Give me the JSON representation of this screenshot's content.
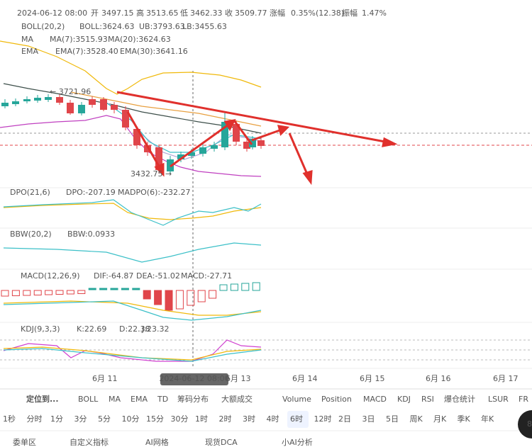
{
  "header": {
    "datetime": "2024-06-12 08:00",
    "open_label": "开",
    "open": "3497.15",
    "high_label": "高",
    "high": "3513.65",
    "low_label": "低",
    "low": "3462.33",
    "close_label": "收",
    "close": "3509.77",
    "change_label": "涨幅",
    "change": "0.35%(12.38)",
    "amplitude_label": "振幅",
    "amplitude": "1.47%"
  },
  "indicators": {
    "boll": {
      "name": "BOLL(20,2)",
      "boll": "BOLL:3624.63",
      "ub": "UB:3793.63",
      "lb": "LB:3455.63"
    },
    "ma": {
      "name": "MA",
      "ma7": "MA(7):3515.93",
      "ma20": "MA(20):3624.63"
    },
    "ema": {
      "name": "EMA",
      "ema7": "EMA(7):3528.40",
      "ema30": "EMA(30):3641.16"
    },
    "dpo": {
      "name": "DPO(21,6)",
      "dpo": "DPO:-207.19",
      "madpo": "MADPO(6):-232.27"
    },
    "bbw": {
      "name": "BBW(20,2)",
      "bbw": "BBW:0.0933"
    },
    "macd": {
      "name": "MACD(12,26,9)",
      "dif": "DIF:-64.87",
      "dea": "DEA:-51.02",
      "macd": "MACD:-27.71"
    },
    "kdj": {
      "name": "KDJ(9,3,3)",
      "k": "K:22.69",
      "d": "D:22.38",
      "j": "J:23.32"
    }
  },
  "price_marks": {
    "high": "← 3721.96",
    "low": "3432.75 →"
  },
  "dates": [
    "6月 11",
    "6月 13",
    "6月 14",
    "6月 15",
    "6月 16",
    "6月 17"
  ],
  "crosshair_date": "2024-06-12 08:00",
  "toolbar": {
    "locate": "定位到...",
    "main": [
      "BOLL",
      "MA",
      "EMA",
      "TD",
      "筹码分布",
      "大额成交"
    ],
    "sub": [
      "Volume",
      "Position",
      "MACD",
      "KDJ",
      "RSI",
      "爆仓统计",
      "LSUR",
      "FR"
    ]
  },
  "intervals": [
    "1秒",
    "分时",
    "1分",
    "3分",
    "5分",
    "10分",
    "15分",
    "30分",
    "1时",
    "2时",
    "3时",
    "4时",
    "6时",
    "12时",
    "2日",
    "3日",
    "5日",
    "周K",
    "月K",
    "季K",
    "年K"
  ],
  "tabs": [
    "委单区",
    "自定义指标",
    "AI网格",
    "现货DCA",
    "小AI分析"
  ],
  "badge": "8"
}
